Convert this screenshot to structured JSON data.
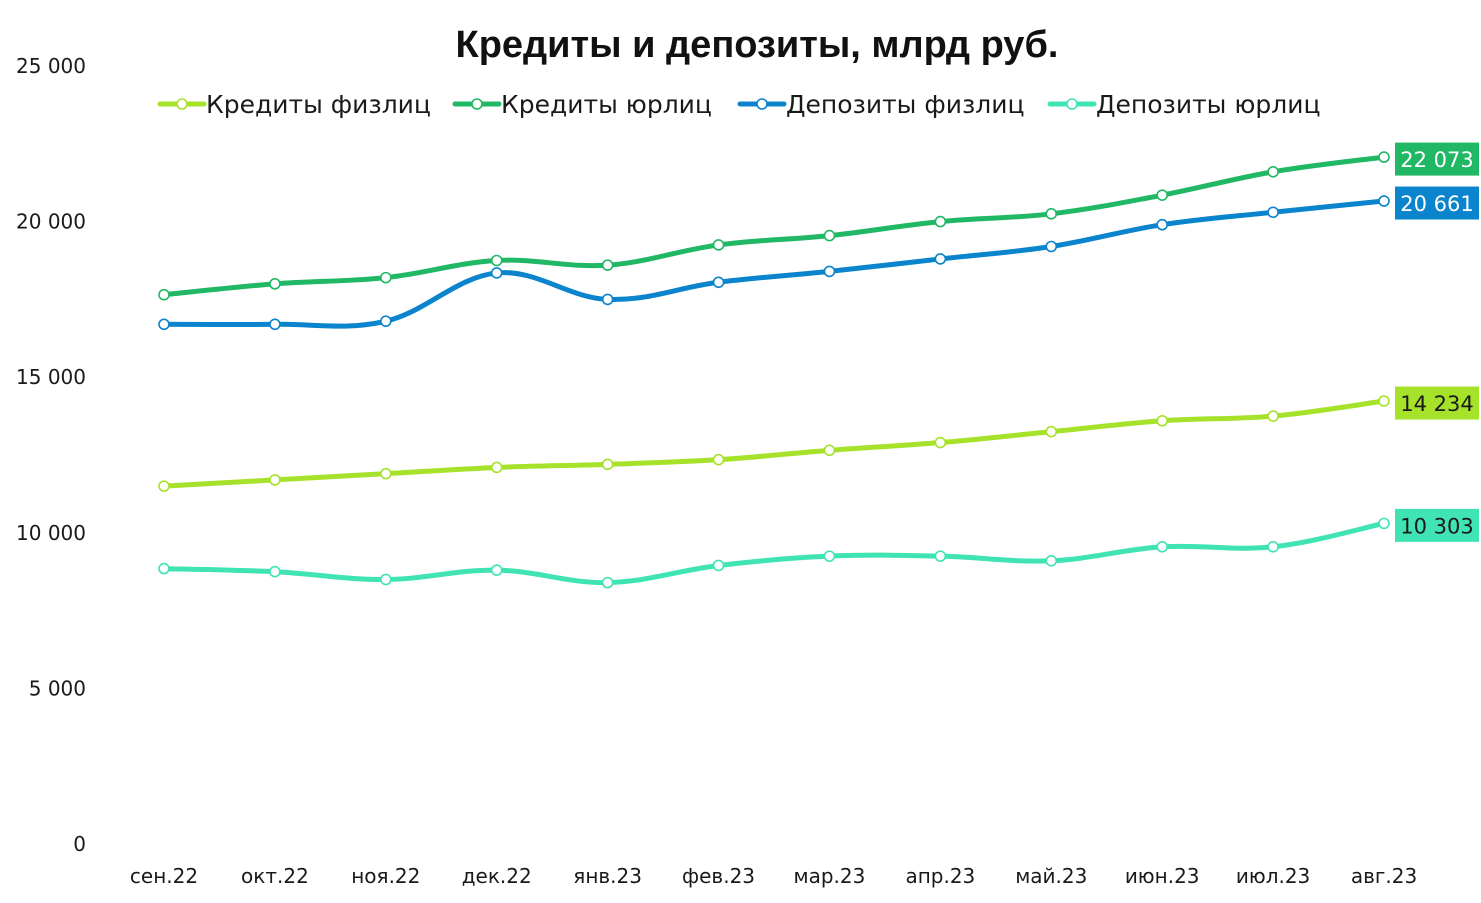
{
  "chart_data": {
    "type": "line",
    "title": "Кредиты и депозиты, млрд руб.",
    "xlabel": "",
    "ylabel": "",
    "ylim": [
      0,
      25000
    ],
    "yticks": [
      {
        "value": 0,
        "label": "0"
      },
      {
        "value": 5000,
        "label": "5 000"
      },
      {
        "value": 10000,
        "label": "10 000"
      },
      {
        "value": 15000,
        "label": "15 000"
      },
      {
        "value": 20000,
        "label": "20 000"
      },
      {
        "value": 25000,
        "label": "25 000"
      }
    ],
    "grid": false,
    "legend_position": "top",
    "categories": [
      "сен.22",
      "окт.22",
      "ноя.22",
      "дек.22",
      "янв.23",
      "фев.23",
      "мар.23",
      "апр.23",
      "май.23",
      "июн.23",
      "июл.23",
      "авг.23"
    ],
    "series": [
      {
        "name": "Кредиты физлиц",
        "color": "#a6e22a",
        "values": [
          11500,
          11700,
          11900,
          12100,
          12200,
          12350,
          12650,
          12900,
          13250,
          13600,
          13750,
          14234
        ],
        "end_label": "14 234",
        "end_label_text_color": "#1a1a1a"
      },
      {
        "name": "Кредиты юрлиц",
        "color": "#20b865",
        "values": [
          17650,
          18000,
          18200,
          18750,
          18600,
          19250,
          19550,
          20000,
          20250,
          20850,
          21600,
          22073
        ],
        "end_label": "22 073",
        "end_label_text_color": "#ffffff"
      },
      {
        "name": "Депозиты физлиц",
        "color": "#0a84cc",
        "values": [
          16700,
          16700,
          16800,
          18350,
          17500,
          18050,
          18400,
          18800,
          19200,
          19900,
          20300,
          20661
        ],
        "end_label": "20 661",
        "end_label_text_color": "#ffffff"
      },
      {
        "name": "Депозиты юрлиц",
        "color": "#40e4b4",
        "values": [
          8850,
          8750,
          8500,
          8800,
          8400,
          8950,
          9250,
          9250,
          9100,
          9550,
          9550,
          10303
        ],
        "end_label": "10 303",
        "end_label_text_color": "#1a1a1a"
      }
    ]
  }
}
